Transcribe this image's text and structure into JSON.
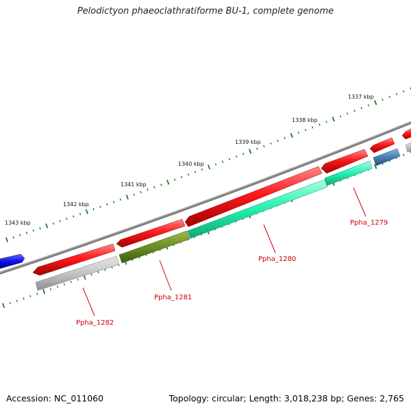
{
  "title": "Pelodictyon phaeoclathratiforme BU-1, complete genome",
  "footer": {
    "accession": "Accession: NC_011060",
    "summary": "Topology: circular; Length: 3,018,238 bp; Genes: 2,765"
  },
  "ruler": {
    "ticks": [
      {
        "label": "1337 kbp"
      },
      {
        "label": "1338 kbp"
      },
      {
        "label": "1339 kbp"
      },
      {
        "label": "1340 kbp"
      },
      {
        "label": "1341 kbp"
      },
      {
        "label": "1342 kbp"
      },
      {
        "label": "1343 kbp"
      }
    ]
  },
  "colors": {
    "cds": "#ff1a1a",
    "gene_gray": "#c8c8c8",
    "gene_olive": "#6b8e23",
    "gene_cyan": "#22f0b0",
    "gene_blue": "#1010ee",
    "gene_steel": "#4682b4",
    "backbone": "#808080",
    "tick": "#1b7a1b",
    "label": "#cc0000"
  },
  "genes": [
    {
      "label": "Ppha_1279"
    },
    {
      "label": "Ppha_1280"
    },
    {
      "label": "Ppha_1281"
    },
    {
      "label": "Ppha_1282"
    }
  ]
}
